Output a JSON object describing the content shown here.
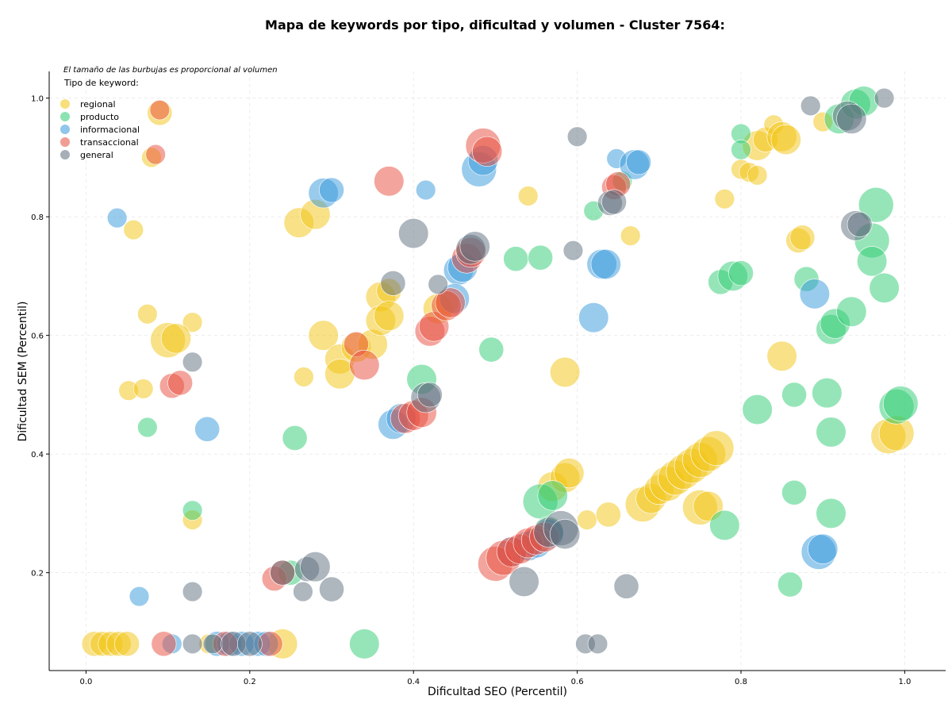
{
  "chart_data": {
    "type": "scatter",
    "title": "Mapa de keywords por tipo, dificultad y volumen - Cluster 7564:",
    "xlabel": "Dificultad SEO (Percentil)",
    "ylabel": "Dificultad SEM (Percentil)",
    "note": "El tamaño de las burbujas es proporcional al volumen",
    "legend_title": "Tipo de keyword:",
    "legend_position": "top-left",
    "xlim": [
      -0.045,
      1.05
    ],
    "ylim": [
      0.035,
      1.045
    ],
    "xticks": [
      "0.0",
      "0.2",
      "0.4",
      "0.6",
      "0.8",
      "1.0"
    ],
    "yticks": [
      "0.2",
      "0.4",
      "0.6",
      "0.8",
      "1.0"
    ],
    "grid": true,
    "series": [
      {
        "name": "regional",
        "color": "#f1c40f",
        "points": [
          [
            0.01,
            0.08,
            3
          ],
          [
            0.02,
            0.08,
            3
          ],
          [
            0.03,
            0.08,
            3
          ],
          [
            0.04,
            0.08,
            3
          ],
          [
            0.05,
            0.08,
            3
          ],
          [
            0.09,
            0.975,
            3
          ],
          [
            0.08,
            0.9,
            2
          ],
          [
            0.058,
            0.778,
            2
          ],
          [
            0.075,
            0.636,
            2
          ],
          [
            0.13,
            0.622,
            2
          ],
          [
            0.1,
            0.592,
            5
          ],
          [
            0.11,
            0.595,
            4
          ],
          [
            0.052,
            0.507,
            2
          ],
          [
            0.07,
            0.51,
            2
          ],
          [
            0.13,
            0.289,
            2
          ],
          [
            0.26,
            0.79,
            4
          ],
          [
            0.28,
            0.804,
            4
          ],
          [
            0.266,
            0.53,
            2
          ],
          [
            0.24,
            0.08,
            4
          ],
          [
            0.15,
            0.08,
            2
          ],
          [
            0.29,
            0.6,
            4
          ],
          [
            0.31,
            0.56,
            4
          ],
          [
            0.31,
            0.535,
            4
          ],
          [
            0.33,
            0.58,
            4
          ],
          [
            0.35,
            0.585,
            4
          ],
          [
            0.36,
            0.665,
            4
          ],
          [
            0.37,
            0.675,
            3
          ],
          [
            0.36,
            0.625,
            4
          ],
          [
            0.37,
            0.633,
            4
          ],
          [
            0.43,
            0.645,
            4
          ],
          [
            0.44,
            0.655,
            3
          ],
          [
            0.54,
            0.835,
            2
          ],
          [
            0.585,
            0.538,
            4
          ],
          [
            0.57,
            0.345,
            4
          ],
          [
            0.585,
            0.36,
            4
          ],
          [
            0.59,
            0.368,
            4
          ],
          [
            0.612,
            0.289,
            2
          ],
          [
            0.638,
            0.298,
            3
          ],
          [
            0.68,
            0.315,
            5
          ],
          [
            0.69,
            0.325,
            4
          ],
          [
            0.7,
            0.34,
            4
          ],
          [
            0.71,
            0.35,
            5
          ],
          [
            0.72,
            0.36,
            5
          ],
          [
            0.73,
            0.37,
            5
          ],
          [
            0.74,
            0.38,
            5
          ],
          [
            0.75,
            0.39,
            5
          ],
          [
            0.76,
            0.4,
            5
          ],
          [
            0.77,
            0.41,
            5
          ],
          [
            0.75,
            0.31,
            5
          ],
          [
            0.76,
            0.312,
            4
          ],
          [
            0.665,
            0.768,
            2
          ],
          [
            0.78,
            0.83,
            2
          ],
          [
            0.82,
            0.92,
            4
          ],
          [
            0.83,
            0.93,
            3
          ],
          [
            0.84,
            0.955,
            2
          ],
          [
            0.85,
            0.935,
            4
          ],
          [
            0.855,
            0.93,
            4
          ],
          [
            0.8,
            0.88,
            2
          ],
          [
            0.81,
            0.875,
            2
          ],
          [
            0.82,
            0.87,
            2
          ],
          [
            0.9,
            0.96,
            2
          ],
          [
            0.87,
            0.76,
            3
          ],
          [
            0.875,
            0.765,
            3
          ],
          [
            0.85,
            0.565,
            4
          ],
          [
            0.98,
            0.43,
            5
          ],
          [
            0.99,
            0.435,
            5
          ]
        ]
      },
      {
        "name": "producto",
        "color": "#2ecc71",
        "points": [
          [
            0.075,
            0.445,
            2
          ],
          [
            0.13,
            0.305,
            2
          ],
          [
            0.25,
            0.2,
            3
          ],
          [
            0.255,
            0.427,
            3
          ],
          [
            0.34,
            0.08,
            4
          ],
          [
            0.41,
            0.526,
            4
          ],
          [
            0.495,
            0.576,
            3
          ],
          [
            0.525,
            0.729,
            3
          ],
          [
            0.555,
            0.731,
            3
          ],
          [
            0.555,
            0.32,
            5
          ],
          [
            0.57,
            0.33,
            4
          ],
          [
            0.565,
            0.27,
            4
          ],
          [
            0.62,
            0.81,
            2
          ],
          [
            0.655,
            0.86,
            2
          ],
          [
            0.775,
            0.69,
            3
          ],
          [
            0.79,
            0.7,
            4
          ],
          [
            0.8,
            0.705,
            3
          ],
          [
            0.8,
            0.94,
            2
          ],
          [
            0.8,
            0.913,
            2
          ],
          [
            0.78,
            0.28,
            4
          ],
          [
            0.82,
            0.475,
            4
          ],
          [
            0.86,
            0.18,
            3
          ],
          [
            0.865,
            0.5,
            3
          ],
          [
            0.865,
            0.335,
            3
          ],
          [
            0.88,
            0.695,
            3
          ],
          [
            0.905,
            0.503,
            4
          ],
          [
            0.91,
            0.437,
            4
          ],
          [
            0.91,
            0.61,
            4
          ],
          [
            0.915,
            0.62,
            4
          ],
          [
            0.935,
            0.64,
            4
          ],
          [
            0.91,
            0.3,
            4
          ],
          [
            0.92,
            0.965,
            4
          ],
          [
            0.94,
            0.99,
            4
          ],
          [
            0.95,
            0.995,
            4
          ],
          [
            0.96,
            0.76,
            5
          ],
          [
            0.96,
            0.725,
            4
          ],
          [
            0.965,
            0.82,
            5
          ],
          [
            0.975,
            0.68,
            4
          ],
          [
            0.99,
            0.48,
            5
          ],
          [
            0.995,
            0.485,
            5
          ]
        ]
      },
      {
        "name": "informacional",
        "color": "#3498db",
        "points": [
          [
            0.038,
            0.798,
            2
          ],
          [
            0.065,
            0.16,
            2
          ],
          [
            0.105,
            0.08,
            2
          ],
          [
            0.148,
            0.442,
            3
          ],
          [
            0.16,
            0.08,
            3
          ],
          [
            0.175,
            0.08,
            3
          ],
          [
            0.19,
            0.08,
            3
          ],
          [
            0.21,
            0.08,
            3
          ],
          [
            0.22,
            0.08,
            3
          ],
          [
            0.29,
            0.84,
            4
          ],
          [
            0.3,
            0.845,
            3
          ],
          [
            0.375,
            0.45,
            4
          ],
          [
            0.385,
            0.46,
            4
          ],
          [
            0.415,
            0.845,
            2
          ],
          [
            0.455,
            0.71,
            4
          ],
          [
            0.46,
            0.715,
            4
          ],
          [
            0.45,
            0.662,
            4
          ],
          [
            0.48,
            0.88,
            5
          ],
          [
            0.485,
            0.895,
            4
          ],
          [
            0.52,
            0.235,
            4
          ],
          [
            0.54,
            0.245,
            4
          ],
          [
            0.55,
            0.25,
            4
          ],
          [
            0.565,
            0.265,
            4
          ],
          [
            0.62,
            0.63,
            4
          ],
          [
            0.63,
            0.72,
            4
          ],
          [
            0.635,
            0.72,
            4
          ],
          [
            0.648,
            0.898,
            2
          ],
          [
            0.67,
            0.888,
            4
          ],
          [
            0.675,
            0.892,
            3
          ],
          [
            0.89,
            0.67,
            4
          ],
          [
            0.895,
            0.235,
            5
          ],
          [
            0.9,
            0.24,
            4
          ]
        ]
      },
      {
        "name": "transaccional",
        "color": "#e74c3c",
        "points": [
          [
            0.09,
            0.98,
            2
          ],
          [
            0.085,
            0.905,
            2
          ],
          [
            0.105,
            0.515,
            3
          ],
          [
            0.115,
            0.52,
            3
          ],
          [
            0.095,
            0.08,
            3
          ],
          [
            0.17,
            0.08,
            3
          ],
          [
            0.225,
            0.08,
            3
          ],
          [
            0.23,
            0.19,
            3
          ],
          [
            0.24,
            0.2,
            3
          ],
          [
            0.33,
            0.585,
            3
          ],
          [
            0.34,
            0.55,
            4
          ],
          [
            0.37,
            0.86,
            4
          ],
          [
            0.39,
            0.46,
            4
          ],
          [
            0.4,
            0.465,
            4
          ],
          [
            0.41,
            0.47,
            4
          ],
          [
            0.42,
            0.607,
            4
          ],
          [
            0.425,
            0.615,
            4
          ],
          [
            0.44,
            0.65,
            4
          ],
          [
            0.445,
            0.655,
            4
          ],
          [
            0.465,
            0.73,
            4
          ],
          [
            0.47,
            0.74,
            4
          ],
          [
            0.485,
            0.92,
            5
          ],
          [
            0.49,
            0.91,
            4
          ],
          [
            0.5,
            0.215,
            5
          ],
          [
            0.51,
            0.225,
            5
          ],
          [
            0.52,
            0.235,
            4
          ],
          [
            0.53,
            0.24,
            4
          ],
          [
            0.54,
            0.25,
            4
          ],
          [
            0.55,
            0.255,
            4
          ],
          [
            0.56,
            0.26,
            4
          ],
          [
            0.645,
            0.85,
            3
          ],
          [
            0.65,
            0.855,
            3
          ]
        ]
      },
      {
        "name": "general",
        "color": "#5d6d7e",
        "points": [
          [
            0.13,
            0.555,
            2
          ],
          [
            0.13,
            0.168,
            2
          ],
          [
            0.13,
            0.08,
            2
          ],
          [
            0.155,
            0.08,
            2
          ],
          [
            0.18,
            0.08,
            3
          ],
          [
            0.2,
            0.08,
            3
          ],
          [
            0.24,
            0.2,
            3
          ],
          [
            0.265,
            0.168,
            2
          ],
          [
            0.27,
            0.206,
            3
          ],
          [
            0.28,
            0.21,
            4
          ],
          [
            0.3,
            0.172,
            3
          ],
          [
            0.375,
            0.688,
            3
          ],
          [
            0.4,
            0.772,
            4
          ],
          [
            0.43,
            0.686,
            2
          ],
          [
            0.415,
            0.495,
            4
          ],
          [
            0.42,
            0.5,
            3
          ],
          [
            0.47,
            0.745,
            4
          ],
          [
            0.475,
            0.75,
            4
          ],
          [
            0.535,
            0.185,
            4
          ],
          [
            0.565,
            0.268,
            4
          ],
          [
            0.58,
            0.275,
            5
          ],
          [
            0.585,
            0.265,
            4
          ],
          [
            0.6,
            0.935,
            2
          ],
          [
            0.595,
            0.743,
            2
          ],
          [
            0.61,
            0.08,
            2
          ],
          [
            0.625,
            0.08,
            2
          ],
          [
            0.64,
            0.823,
            3
          ],
          [
            0.645,
            0.825,
            3
          ],
          [
            0.66,
            0.177,
            3
          ],
          [
            0.885,
            0.987,
            2
          ],
          [
            0.93,
            0.97,
            4
          ],
          [
            0.935,
            0.965,
            4
          ],
          [
            0.94,
            0.785,
            4
          ],
          [
            0.945,
            0.787,
            3
          ],
          [
            0.975,
            1.0,
            2
          ]
        ]
      }
    ]
  }
}
